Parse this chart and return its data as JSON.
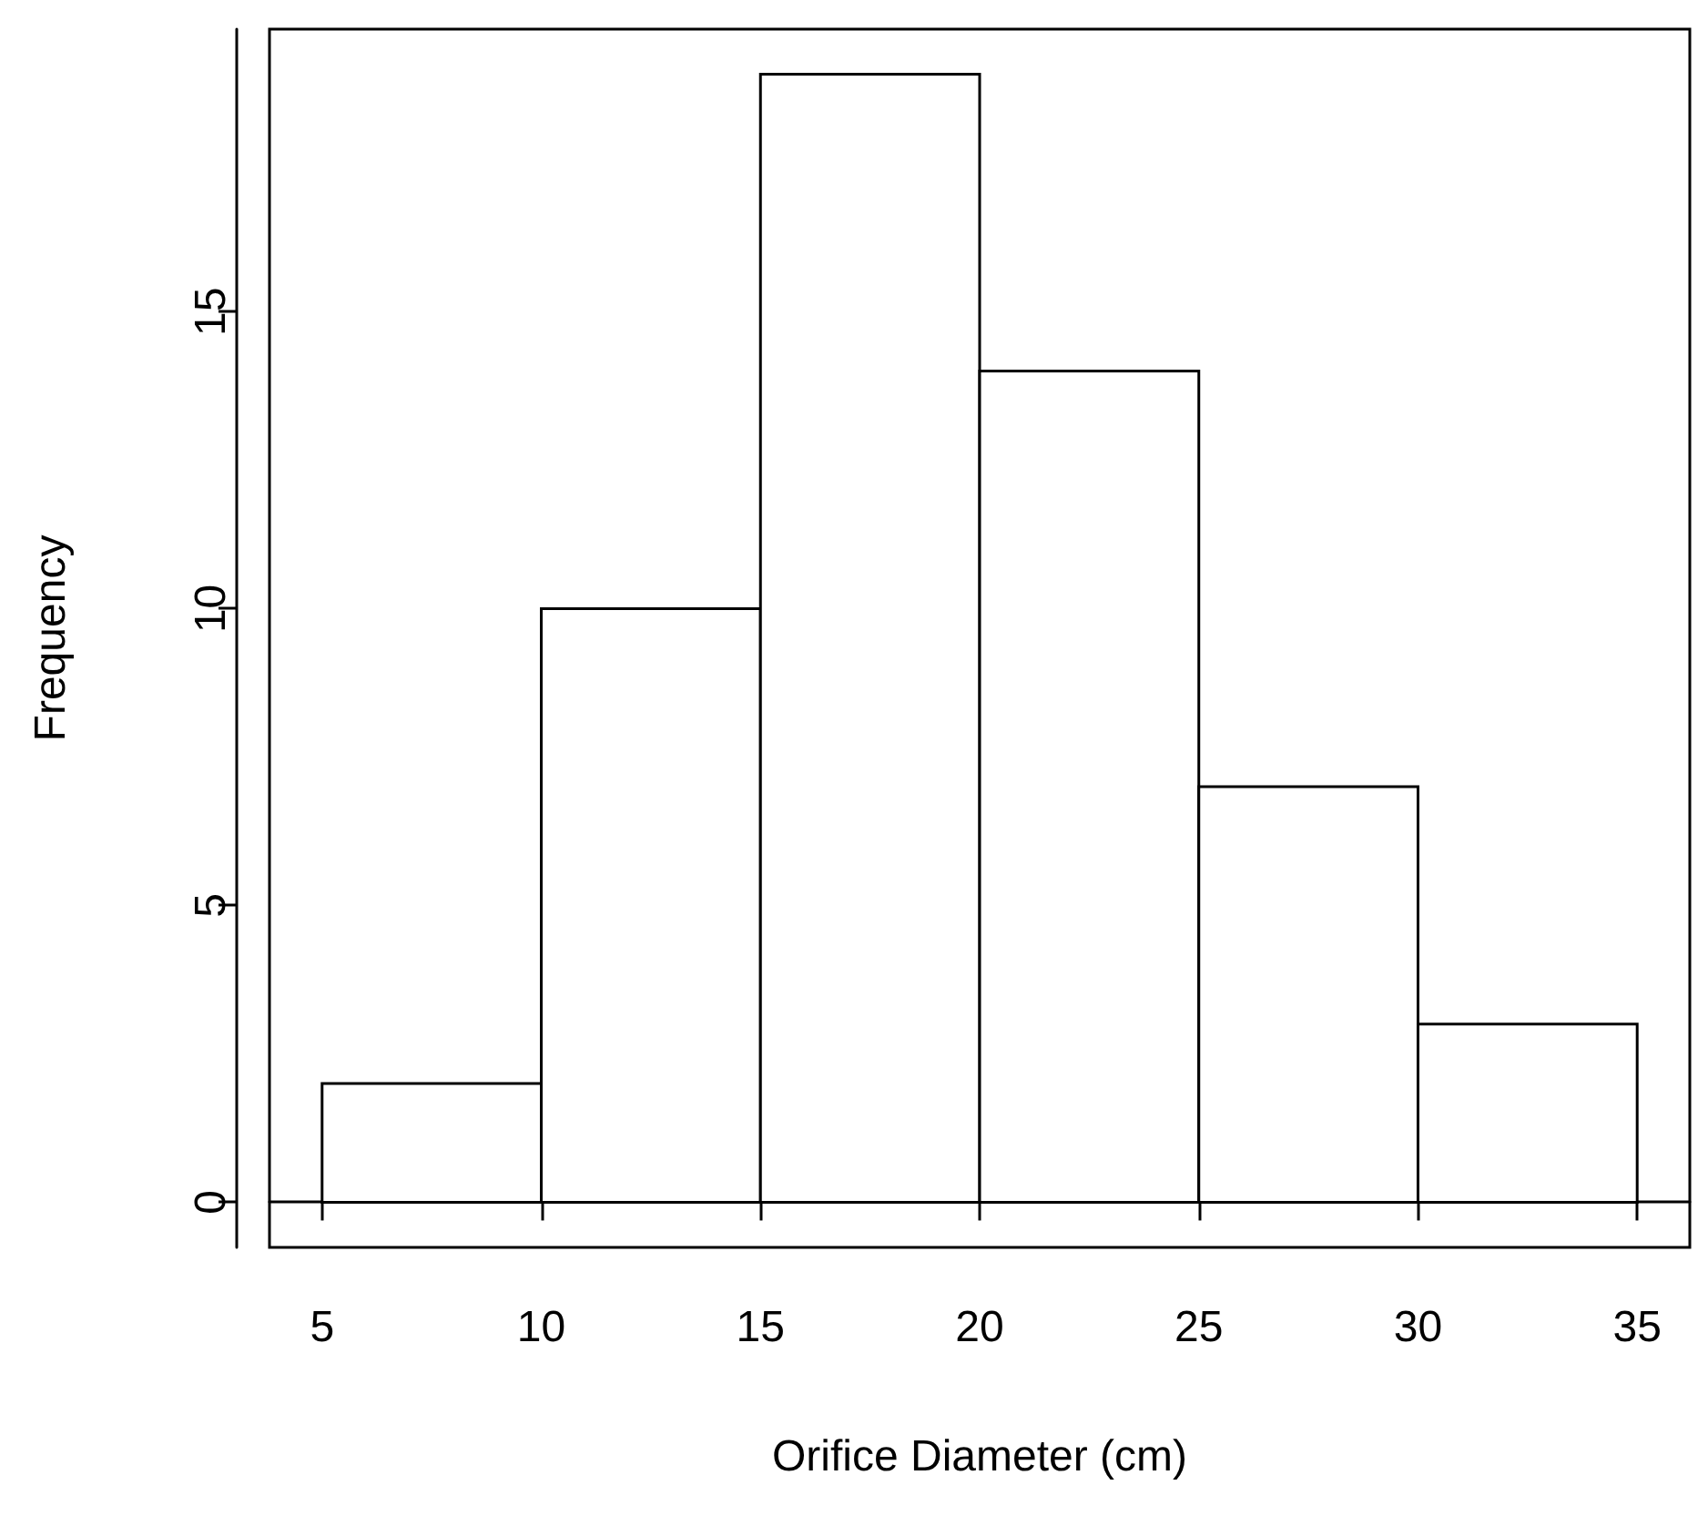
{
  "chart_data": {
    "type": "histogram",
    "xlabel": "Orifice Diameter (cm)",
    "ylabel": "Frequency",
    "bins": [
      5,
      10,
      15,
      20,
      25,
      30,
      35
    ],
    "values": [
      2,
      10,
      19,
      14,
      7,
      3
    ],
    "color": "#ffffff",
    "xlim": [
      3.8,
      36.2
    ],
    "ylim": [
      -0.76,
      19.76
    ],
    "xticks": [
      5,
      10,
      15,
      20,
      25,
      30,
      35
    ],
    "yticks": [
      0,
      5,
      10,
      15
    ]
  }
}
